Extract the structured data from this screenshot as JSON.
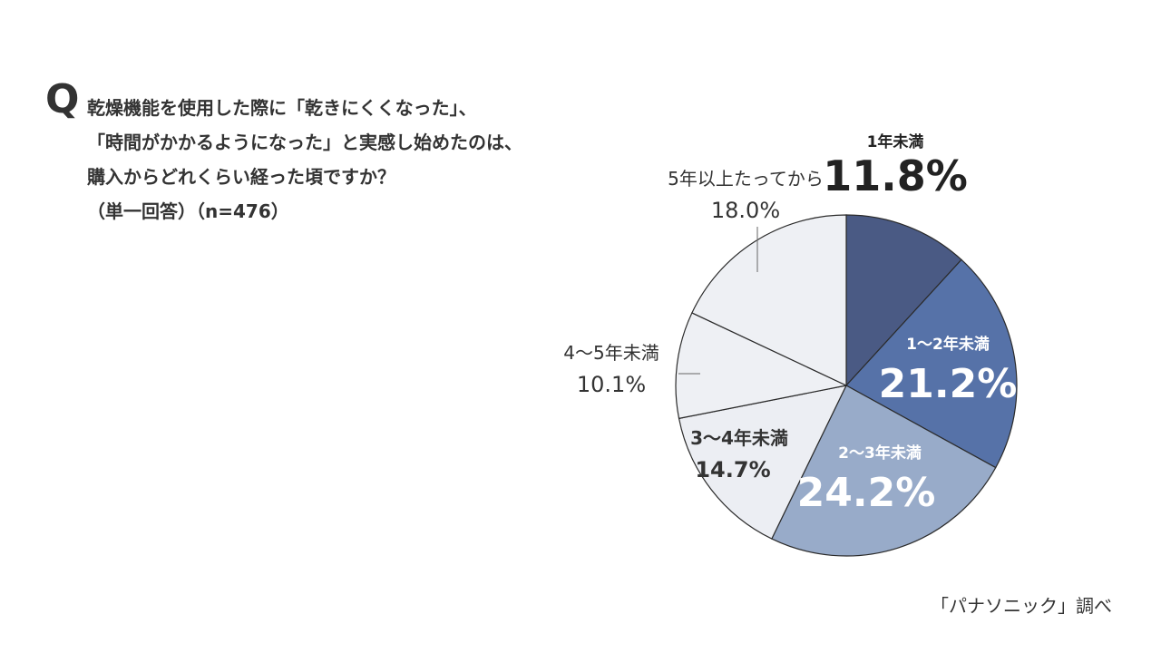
{
  "question": {
    "mark": "Q",
    "lines": [
      "乾燥機能を使用した際に「乾きにくくなった」、",
      "「時間がかかるようになった」と実感し始めたのは、",
      "購入からどれくらい経った頃ですか？",
      "（単一回答）（n=476）"
    ]
  },
  "source": "「パナソニック」調べ",
  "chart_data": {
    "type": "pie",
    "start_angle_deg": 0,
    "direction": "clockwise",
    "slices": [
      {
        "label": "1年未満",
        "value": 11.8,
        "display": "11.8%",
        "color": "#4a5a84",
        "label_color": "#222222",
        "label_inside": false
      },
      {
        "label": "1〜2年未満",
        "value": 21.2,
        "display": "21.2%",
        "color": "#5672a8",
        "label_color": "#ffffff",
        "label_inside": true
      },
      {
        "label": "2〜3年未満",
        "value": 24.2,
        "display": "24.2%",
        "color": "#98abc9",
        "label_color": "#ffffff",
        "label_inside": true
      },
      {
        "label": "3〜4年未満",
        "value": 14.7,
        "display": "14.7%",
        "color": "#eceef3",
        "label_color": "#333333",
        "label_inside": true
      },
      {
        "label": "4〜5年未満",
        "value": 10.1,
        "display": "10.1%",
        "color": "#eef0f4",
        "label_color": "#333333",
        "label_inside": false
      },
      {
        "label": "5年以上たってから",
        "value": 18.0,
        "display": "18.0%",
        "color": "#eef0f4",
        "label_color": "#333333",
        "label_inside": false
      }
    ],
    "stroke_color": "#2b2b2b"
  }
}
